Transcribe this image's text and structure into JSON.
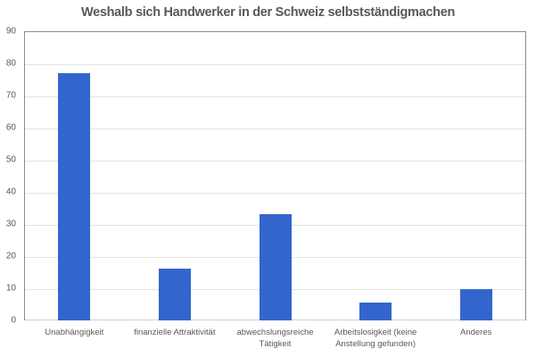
{
  "chart_data": {
    "type": "bar",
    "title": "Weshalb sich Handwerker in der Schweiz selbstständig machen",
    "xlabel": "",
    "ylabel": "",
    "ylim": [
      0,
      90
    ],
    "yticks": [
      0,
      10,
      20,
      30,
      40,
      50,
      60,
      70,
      80,
      90
    ],
    "grid": true,
    "legend": null,
    "categories": [
      "Unabhängigkeit",
      "finanzielle Attraktivität",
      "abwechslungsreiche Tätigkeit",
      "Arbeitslosigkeit (keine Anstellung gefunden)",
      "Anderes"
    ],
    "values": [
      77,
      16,
      33,
      5.5,
      9.7
    ],
    "bar_color": "#3366CC"
  },
  "header": {
    "title": "Weshalb sich Handwerker in der Schweiz selbstständigmachen"
  },
  "axis": {
    "y_labels": [
      "0",
      "10",
      "20",
      "30",
      "40",
      "50",
      "60",
      "70",
      "80",
      "90"
    ],
    "x_labels": [
      "Unabhängigkeit",
      "finanzielle Attraktivität",
      "abwechslungsreiche Tätigkeit",
      "Arbeitslosigkeit (keine Anstellung gefunden)",
      "Anderes"
    ]
  }
}
